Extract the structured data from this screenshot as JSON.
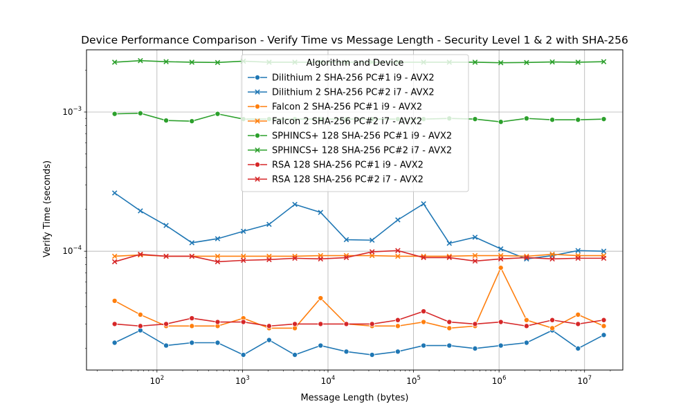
{
  "chart_data": {
    "type": "line",
    "title": "Device Performance Comparison - Verify Time vs Message Length - Security Level 1 & 2 with SHA-256",
    "xlabel": "Message Length (bytes)",
    "ylabel": "Verify Time (seconds)",
    "xscale": "log",
    "yscale": "log",
    "xlim": [
      15,
      28000000
    ],
    "ylim": [
      1.4e-05,
      0.0028
    ],
    "grid": true,
    "legend": {
      "title": "Algorithm and Device",
      "placement": "upper-center"
    },
    "x_ticks": [
      {
        "value": 100,
        "base": "10",
        "exp": "2"
      },
      {
        "value": 1000,
        "base": "10",
        "exp": "3"
      },
      {
        "value": 10000,
        "base": "10",
        "exp": "4"
      },
      {
        "value": 100000,
        "base": "10",
        "exp": "5"
      },
      {
        "value": 1000000,
        "base": "10",
        "exp": "6"
      },
      {
        "value": 10000000,
        "base": "10",
        "exp": "7"
      }
    ],
    "y_ticks": [
      {
        "value": 0.0001,
        "base": "10",
        "exp": "−4"
      },
      {
        "value": 0.001,
        "base": "10",
        "exp": "−3"
      }
    ],
    "x": [
      32,
      64,
      128,
      256,
      512,
      1024,
      2048,
      4096,
      8192,
      16384,
      32768,
      65536,
      131072,
      262144,
      524288,
      1048576,
      2097152,
      4194304,
      8388608,
      16777216
    ],
    "series": [
      {
        "name": "Dilithium 2 SHA-256 PC#1 i9 - AVX2",
        "color": "#1f77b4",
        "marker": "circle",
        "values": [
          2.2e-05,
          2.7e-05,
          2.1e-05,
          2.2e-05,
          2.2e-05,
          1.8e-05,
          2.3e-05,
          1.8e-05,
          2.1e-05,
          1.9e-05,
          1.8e-05,
          1.9e-05,
          2.1e-05,
          2.1e-05,
          2e-05,
          2.1e-05,
          2.2e-05,
          2.7e-05,
          2e-05,
          2.5e-05
        ]
      },
      {
        "name": "Dilithium 2 SHA-256 PC#2 i7 - AVX2",
        "color": "#1f77b4",
        "marker": "x",
        "values": [
          0.000262,
          0.000195,
          0.000153,
          0.000115,
          0.000123,
          0.000139,
          0.000156,
          0.000217,
          0.00019,
          0.000121,
          0.00012,
          0.000168,
          0.000219,
          0.000114,
          0.000126,
          0.000104,
          8.8e-05,
          9.3e-05,
          0.000101,
          0.0001
        ]
      },
      {
        "name": "Falcon 2 SHA-256 PC#1 i9 - AVX2",
        "color": "#ff7f0e",
        "marker": "circle",
        "values": [
          4.4e-05,
          3.5e-05,
          2.9e-05,
          2.9e-05,
          2.9e-05,
          3.3e-05,
          2.8e-05,
          2.8e-05,
          4.6e-05,
          3e-05,
          2.9e-05,
          2.9e-05,
          3.1e-05,
          2.8e-05,
          2.9e-05,
          7.6e-05,
          3.2e-05,
          2.8e-05,
          3.5e-05,
          2.9e-05
        ]
      },
      {
        "name": "Falcon 2 SHA-256 PC#2 i7 - AVX2",
        "color": "#ff7f0e",
        "marker": "x",
        "values": [
          9.2e-05,
          9.4e-05,
          9.2e-05,
          9.2e-05,
          9.2e-05,
          9.2e-05,
          9.2e-05,
          9.2e-05,
          9.3e-05,
          9.3e-05,
          9.3e-05,
          9.2e-05,
          9.2e-05,
          9.2e-05,
          9.3e-05,
          9.3e-05,
          9.2e-05,
          9.5e-05,
          9.3e-05,
          9.3e-05
        ]
      },
      {
        "name": "SPHINCS+ 128 SHA-256 PC#1 i9 - AVX2",
        "color": "#2ca02c",
        "marker": "circle",
        "values": [
          0.00097,
          0.00098,
          0.00087,
          0.00086,
          0.00097,
          0.00089,
          0.00089,
          0.00089,
          0.00089,
          0.00089,
          0.00089,
          0.00089,
          0.00089,
          0.0009,
          0.00089,
          0.00085,
          0.0009,
          0.00088,
          0.00088,
          0.00089
        ]
      },
      {
        "name": "SPHINCS+ 128 SHA-256 PC#2 i7 - AVX2",
        "color": "#2ca02c",
        "marker": "x",
        "values": [
          0.00228,
          0.00234,
          0.0023,
          0.00228,
          0.00227,
          0.00232,
          0.00228,
          0.00228,
          0.00228,
          0.00228,
          0.00228,
          0.00228,
          0.00228,
          0.00228,
          0.00228,
          0.00226,
          0.00227,
          0.00229,
          0.00228,
          0.0023
        ]
      },
      {
        "name": "RSA 128 SHA-256 PC#1 i9 - AVX2",
        "color": "#d62728",
        "marker": "circle",
        "values": [
          3e-05,
          2.9e-05,
          3e-05,
          3.3e-05,
          3.1e-05,
          3.1e-05,
          2.9e-05,
          3e-05,
          3e-05,
          3e-05,
          3e-05,
          3.2e-05,
          3.7e-05,
          3.1e-05,
          3e-05,
          3.1e-05,
          2.9e-05,
          3.2e-05,
          3e-05,
          3.2e-05
        ]
      },
      {
        "name": "RSA 128 SHA-256 PC#2 i7 - AVX2",
        "color": "#d62728",
        "marker": "x",
        "values": [
          8.4e-05,
          9.5e-05,
          9.2e-05,
          9.2e-05,
          8.4e-05,
          8.6e-05,
          8.7e-05,
          8.9e-05,
          8.8e-05,
          9e-05,
          9.9e-05,
          0.000101,
          9e-05,
          9e-05,
          8.5e-05,
          8.8e-05,
          9e-05,
          8.8e-05,
          8.9e-05,
          8.9e-05
        ]
      }
    ]
  }
}
